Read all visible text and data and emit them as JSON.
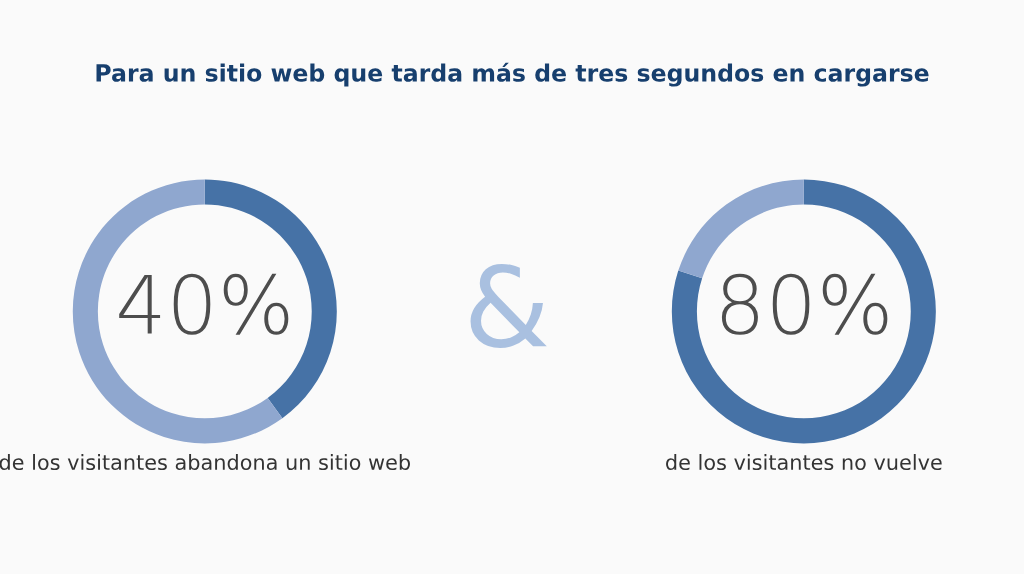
{
  "chart_data": [
    {
      "type": "donut",
      "title": "Para un sitio web que tarda más de tres segundos en cargarse",
      "categories": [
        null,
        null
      ],
      "values": [
        40,
        60
      ],
      "colors": [
        "#4672a6",
        "#8fa7cf"
      ],
      "annotations": [
        "40%",
        "de los visitantes abandona un sitio web"
      ]
    },
    {
      "type": "other",
      "annotations": [
        "&"
      ]
    },
    {
      "type": "donut",
      "categories": [
        null,
        null
      ],
      "values": [
        80,
        20
      ],
      "colors": [
        "#4672a6",
        "#8fa7cf"
      ],
      "annotations": [
        "80%",
        "de los visitantes no vuelve"
      ]
    }
  ]
}
